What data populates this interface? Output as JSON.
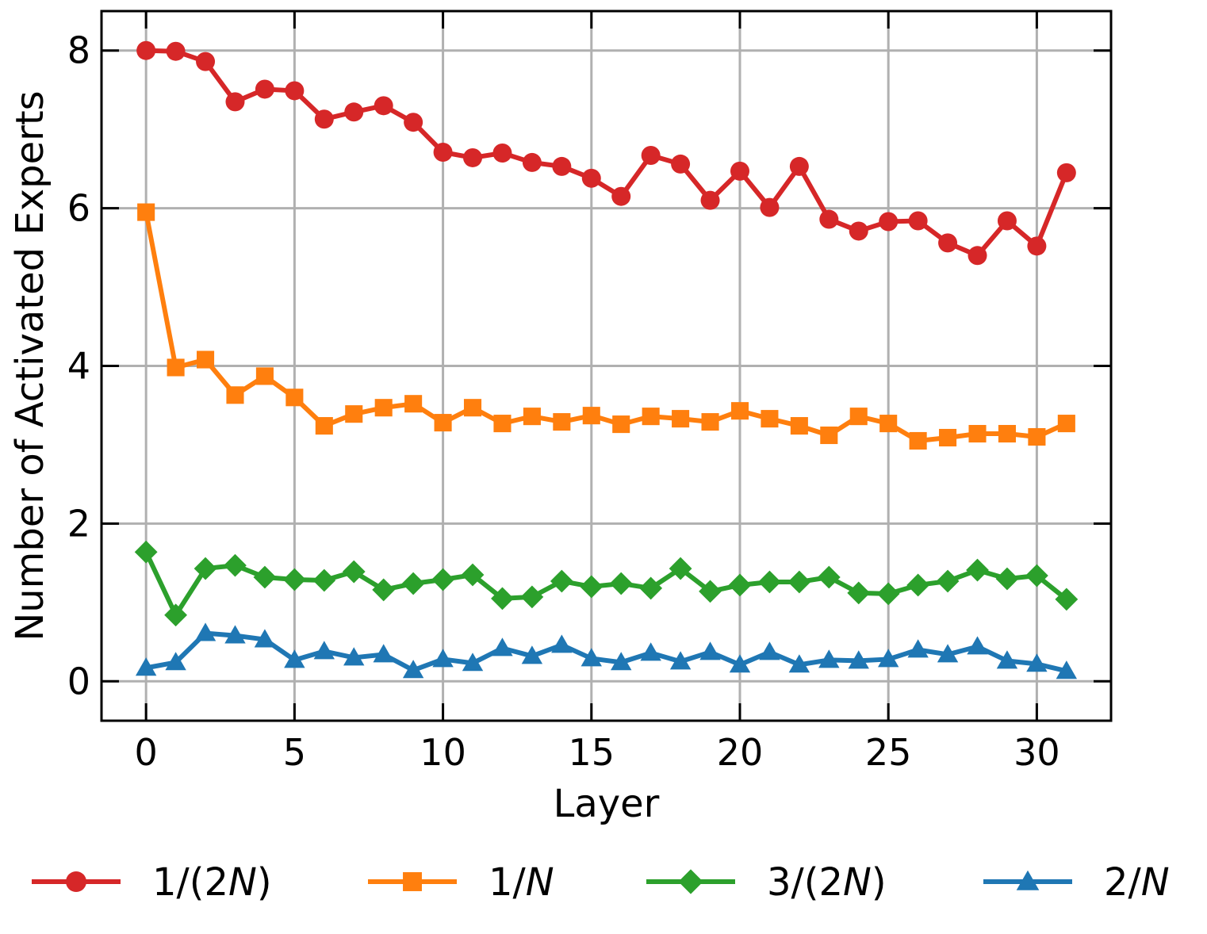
{
  "chart_data": {
    "type": "line",
    "xlabel": "Layer",
    "ylabel": "Number of Activated Experts",
    "xlim": [
      -1.5,
      32.5
    ],
    "ylim": [
      -0.5,
      8.5
    ],
    "xticks": [
      0,
      5,
      10,
      15,
      20,
      25,
      30
    ],
    "yticks": [
      0,
      2,
      4,
      6,
      8
    ],
    "grid": true,
    "legend_position": "bottom-center",
    "x": [
      0,
      1,
      2,
      3,
      4,
      5,
      6,
      7,
      8,
      9,
      10,
      11,
      12,
      13,
      14,
      15,
      16,
      17,
      18,
      19,
      20,
      21,
      22,
      23,
      24,
      25,
      26,
      27,
      28,
      29,
      30,
      31
    ],
    "series": [
      {
        "name_parts": [
          "1/(2",
          "N",
          ")"
        ],
        "color": "#d62728",
        "marker": "circle",
        "values": [
          8.0,
          7.99,
          7.86,
          7.35,
          7.51,
          7.49,
          7.13,
          7.22,
          7.3,
          7.09,
          6.71,
          6.64,
          6.7,
          6.58,
          6.53,
          6.38,
          6.15,
          6.67,
          6.56,
          6.1,
          6.47,
          6.01,
          6.53,
          5.86,
          5.71,
          5.83,
          5.84,
          5.56,
          5.4,
          5.84,
          5.52,
          6.45
        ]
      },
      {
        "name_parts": [
          "1/",
          "N",
          ""
        ],
        "color": "#ff7f0e",
        "marker": "square",
        "values": [
          5.95,
          3.98,
          4.08,
          3.63,
          3.87,
          3.6,
          3.24,
          3.39,
          3.47,
          3.52,
          3.28,
          3.47,
          3.27,
          3.36,
          3.29,
          3.37,
          3.26,
          3.36,
          3.33,
          3.29,
          3.43,
          3.33,
          3.24,
          3.12,
          3.36,
          3.27,
          3.05,
          3.09,
          3.14,
          3.14,
          3.1,
          3.27
        ]
      },
      {
        "name_parts": [
          "3/(2",
          "N",
          ")"
        ],
        "color": "#2ca02c",
        "marker": "diamond",
        "values": [
          1.64,
          0.84,
          1.43,
          1.47,
          1.32,
          1.29,
          1.28,
          1.39,
          1.16,
          1.24,
          1.29,
          1.35,
          1.05,
          1.07,
          1.27,
          1.2,
          1.24,
          1.18,
          1.43,
          1.14,
          1.22,
          1.26,
          1.26,
          1.32,
          1.12,
          1.11,
          1.22,
          1.27,
          1.41,
          1.3,
          1.34,
          1.04
        ]
      },
      {
        "name_parts": [
          "2/",
          "N",
          ""
        ],
        "color": "#1f77b4",
        "marker": "triangle",
        "values": [
          0.17,
          0.24,
          0.61,
          0.58,
          0.53,
          0.27,
          0.38,
          0.3,
          0.34,
          0.14,
          0.28,
          0.23,
          0.42,
          0.32,
          0.46,
          0.29,
          0.24,
          0.36,
          0.25,
          0.37,
          0.21,
          0.37,
          0.21,
          0.27,
          0.26,
          0.28,
          0.4,
          0.34,
          0.44,
          0.26,
          0.22,
          0.13
        ]
      }
    ]
  }
}
